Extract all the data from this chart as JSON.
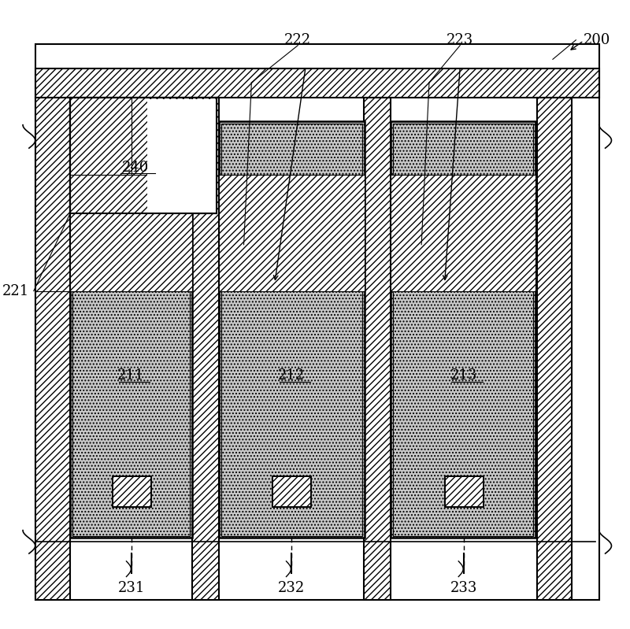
{
  "bg_color": "#ffffff",
  "border_color": "#000000",
  "hatch_color": "#000000",
  "dot_fill": "#d8d8d8",
  "label_200": "200",
  "label_221": "221",
  "label_222": "222",
  "label_223": "223",
  "label_240": "240",
  "label_211": "211",
  "label_212": "212",
  "label_213": "213",
  "label_231": "231",
  "label_232": "232",
  "label_233": "233",
  "fig_width": 8.0,
  "fig_height": 7.99
}
